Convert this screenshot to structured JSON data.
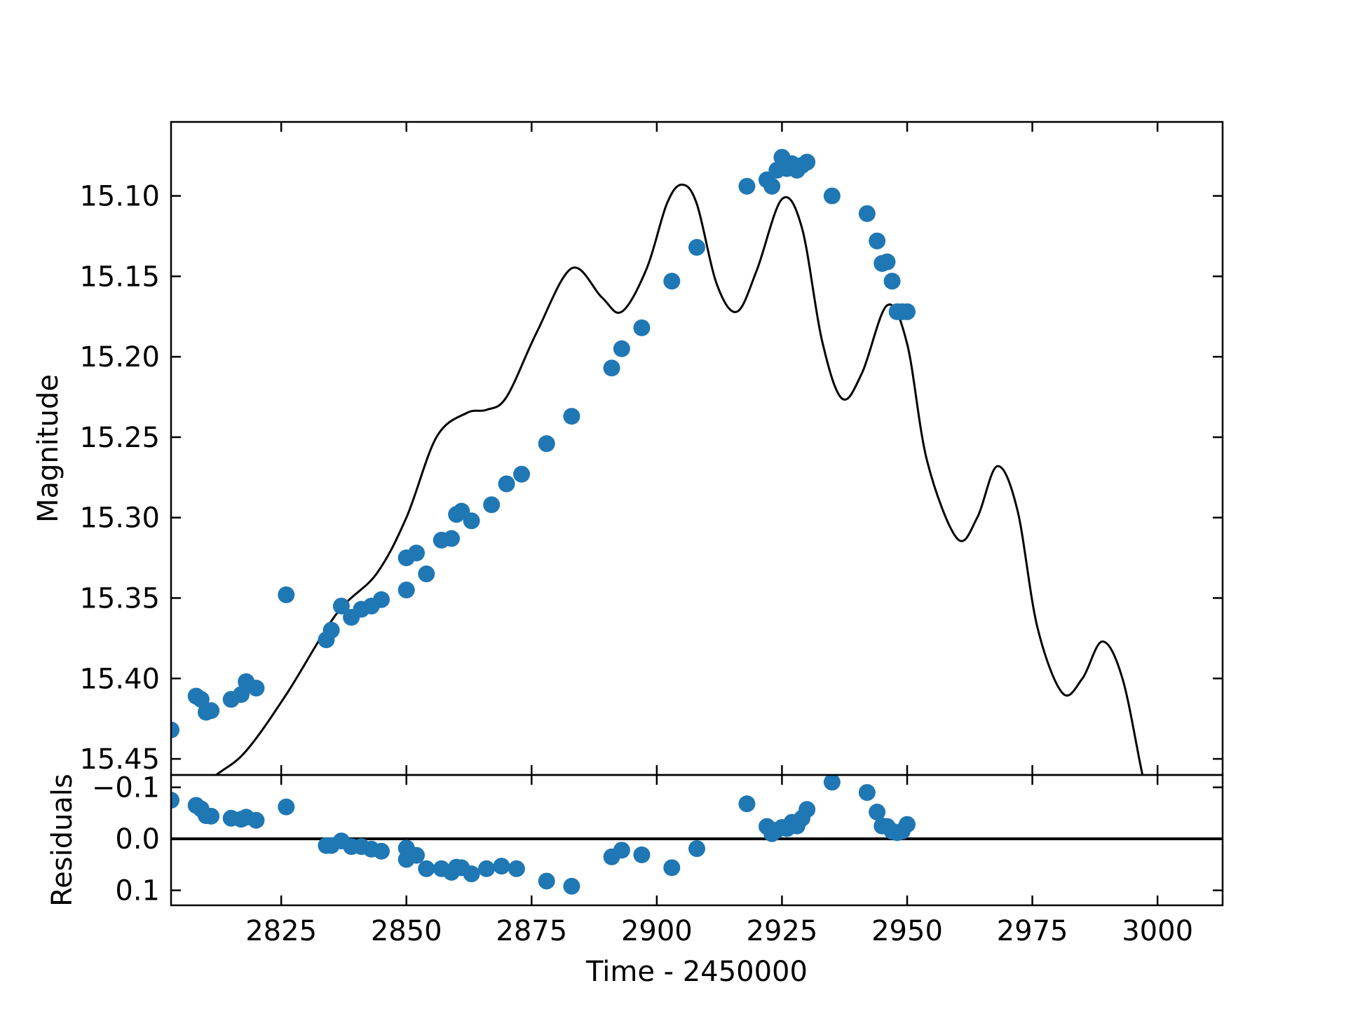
{
  "chart_data": [
    {
      "panel": "main",
      "type": "scatter",
      "xlabel": "",
      "ylabel": "Magnitude",
      "xlim": [
        2803,
        3013
      ],
      "ylim": [
        15.46,
        15.054
      ],
      "y_inverted": true,
      "yticks": [
        15.1,
        15.15,
        15.2,
        15.25,
        15.3,
        15.35,
        15.4,
        15.45
      ],
      "ytick_labels": [
        "15.10",
        "15.15",
        "15.20",
        "15.25",
        "15.30",
        "15.35",
        "15.40",
        "15.45"
      ],
      "grid": false,
      "marker_color": "#1f77b4",
      "line_color": "#000000",
      "series": [
        {
          "kind": "points",
          "x": [
            2803,
            2808,
            2809,
            2810,
            2811,
            2815,
            2817,
            2818,
            2820,
            2826,
            2834,
            2835,
            2837,
            2839,
            2841,
            2843,
            2845,
            2850,
            2850,
            2852,
            2854,
            2857,
            2859,
            2860,
            2861,
            2863,
            2867,
            2870,
            2873,
            2878,
            2883,
            2891,
            2893,
            2897,
            2903,
            2908,
            2918,
            2922,
            2923,
            2924,
            2925,
            2926,
            2927,
            2928,
            2929,
            2930,
            2935,
            2942,
            2944,
            2945,
            2946,
            2947,
            2948,
            2949,
            2950
          ],
          "y": [
            15.432,
            15.411,
            15.413,
            15.421,
            15.42,
            15.413,
            15.41,
            15.402,
            15.406,
            15.348,
            15.376,
            15.37,
            15.355,
            15.362,
            15.357,
            15.355,
            15.351,
            15.345,
            15.325,
            15.322,
            15.335,
            15.314,
            15.313,
            15.298,
            15.296,
            15.302,
            15.292,
            15.279,
            15.273,
            15.254,
            15.237,
            15.207,
            15.195,
            15.182,
            15.153,
            15.132,
            15.094,
            15.09,
            15.094,
            15.084,
            15.076,
            15.083,
            15.08,
            15.084,
            15.081,
            15.079,
            15.1,
            15.111,
            15.128,
            15.142,
            15.141,
            15.153,
            15.172,
            15.172,
            15.172
          ]
        },
        {
          "kind": "line",
          "x": [
            2803,
            2812,
            2818,
            2826,
            2836,
            2844,
            2850,
            2856,
            2862,
            2866,
            2870,
            2876,
            2883,
            2889,
            2893,
            2898,
            2902,
            2905,
            2908,
            2912,
            2916,
            2920,
            2925,
            2929,
            2933,
            2937,
            2941,
            2946,
            2950,
            2954,
            2960,
            2964,
            2968,
            2972,
            2976,
            2981,
            2985,
            2989,
            2993,
            2997,
            3000
          ],
          "y": [
            15.48,
            15.46,
            15.445,
            15.41,
            15.36,
            15.335,
            15.3,
            15.25,
            15.235,
            15.233,
            15.225,
            15.185,
            15.145,
            15.163,
            15.172,
            15.145,
            15.105,
            15.093,
            15.105,
            15.155,
            15.172,
            15.146,
            15.102,
            15.12,
            15.19,
            15.226,
            15.21,
            15.168,
            15.192,
            15.265,
            15.313,
            15.3,
            15.268,
            15.295,
            15.368,
            15.409,
            15.4,
            15.377,
            15.4,
            15.46,
            15.5
          ]
        }
      ]
    },
    {
      "panel": "residuals",
      "type": "scatter",
      "xlabel": "Time - 2450000",
      "ylabel": "Residuals",
      "xlim": [
        2803,
        3013
      ],
      "ylim": [
        0.129,
        -0.124
      ],
      "y_inverted": true,
      "xticks": [
        2825,
        2850,
        2875,
        2900,
        2925,
        2950,
        2975,
        3000
      ],
      "xtick_labels": [
        "2825",
        "2850",
        "2875",
        "2900",
        "2925",
        "2950",
        "2975",
        "3000"
      ],
      "yticks": [
        -0.1,
        0.0,
        0.1
      ],
      "ytick_labels": [
        "−0.1",
        "0.0",
        "0.1"
      ],
      "grid": false,
      "reference_line_y": 0.0,
      "series": [
        {
          "kind": "points",
          "x": [
            2803,
            2808,
            2809,
            2810,
            2811,
            2815,
            2817,
            2818,
            2820,
            2826,
            2834,
            2835,
            2837,
            2839,
            2841,
            2843,
            2845,
            2850,
            2850,
            2852,
            2854,
            2857,
            2859,
            2860,
            2861,
            2863,
            2866,
            2869,
            2872,
            2878,
            2883,
            2891,
            2893,
            2897,
            2903,
            2908,
            2918,
            2922,
            2923,
            2924,
            2925,
            2926,
            2927,
            2928,
            2929,
            2930,
            2935,
            2942,
            2944,
            2945,
            2946,
            2947,
            2948,
            2949,
            2950
          ],
          "y": [
            -0.075,
            -0.065,
            -0.058,
            -0.045,
            -0.044,
            -0.04,
            -0.038,
            -0.042,
            -0.036,
            -0.062,
            0.013,
            0.013,
            0.004,
            0.015,
            0.015,
            0.02,
            0.024,
            0.018,
            0.04,
            0.032,
            0.058,
            0.058,
            0.065,
            0.055,
            0.056,
            0.068,
            0.058,
            0.053,
            0.058,
            0.082,
            0.092,
            0.035,
            0.022,
            0.031,
            0.056,
            0.019,
            -0.068,
            -0.024,
            -0.01,
            -0.017,
            -0.022,
            -0.02,
            -0.032,
            -0.025,
            -0.04,
            -0.057,
            -0.11,
            -0.09,
            -0.052,
            -0.025,
            -0.024,
            -0.015,
            -0.012,
            -0.015,
            -0.028
          ]
        }
      ]
    }
  ]
}
